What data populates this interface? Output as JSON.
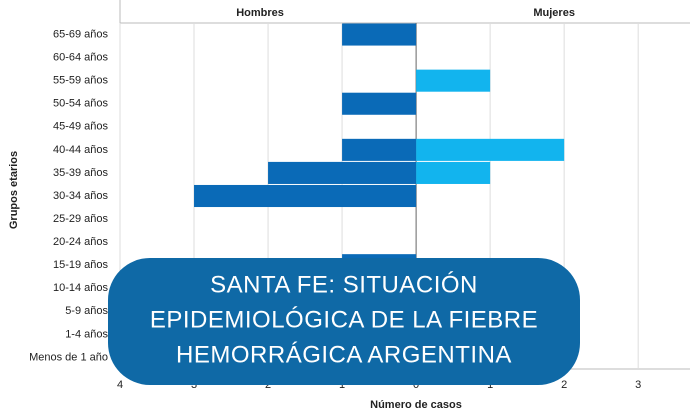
{
  "chart_data": {
    "type": "pyramid",
    "y_label": "Grupos etarios",
    "x_label": "Número de casos",
    "categories": [
      "65-69 años",
      "60-64 años",
      "55-59 años",
      "50-54 años",
      "45-49 años",
      "40-44 años",
      "35-39 años",
      "30-34 años",
      "25-29 años",
      "20-24 años",
      "15-19 años",
      "10-14 años",
      "5-9 años",
      "1-4 años",
      "Menos de 1 año"
    ],
    "series": [
      {
        "name": "Hombres",
        "color": "#0a6ab7",
        "side": "left",
        "values": [
          1,
          0,
          0,
          1,
          0,
          1,
          2,
          3,
          0,
          0,
          1,
          0,
          0,
          0,
          0
        ]
      },
      {
        "name": "Mujeres",
        "color": "#12b4ee",
        "side": "right",
        "values": [
          0,
          0,
          1,
          0,
          0,
          2,
          1,
          0,
          0,
          0,
          0,
          0,
          0,
          0,
          0
        ]
      }
    ],
    "xlim": [
      -4,
      3.7
    ],
    "xticks": [
      {
        "value": -4,
        "label": "4"
      },
      {
        "value": -3,
        "label": "3"
      },
      {
        "value": -2,
        "label": "2"
      },
      {
        "value": -1,
        "label": "1"
      },
      0,
      1,
      2,
      3
    ],
    "grid": true
  },
  "banner": {
    "lines": [
      "SANTA FE: SITUACIÓN",
      "EPIDEMIOLÓGICA DE LA FIEBRE",
      "HEMORRÁGICA ARGENTINA"
    ]
  }
}
